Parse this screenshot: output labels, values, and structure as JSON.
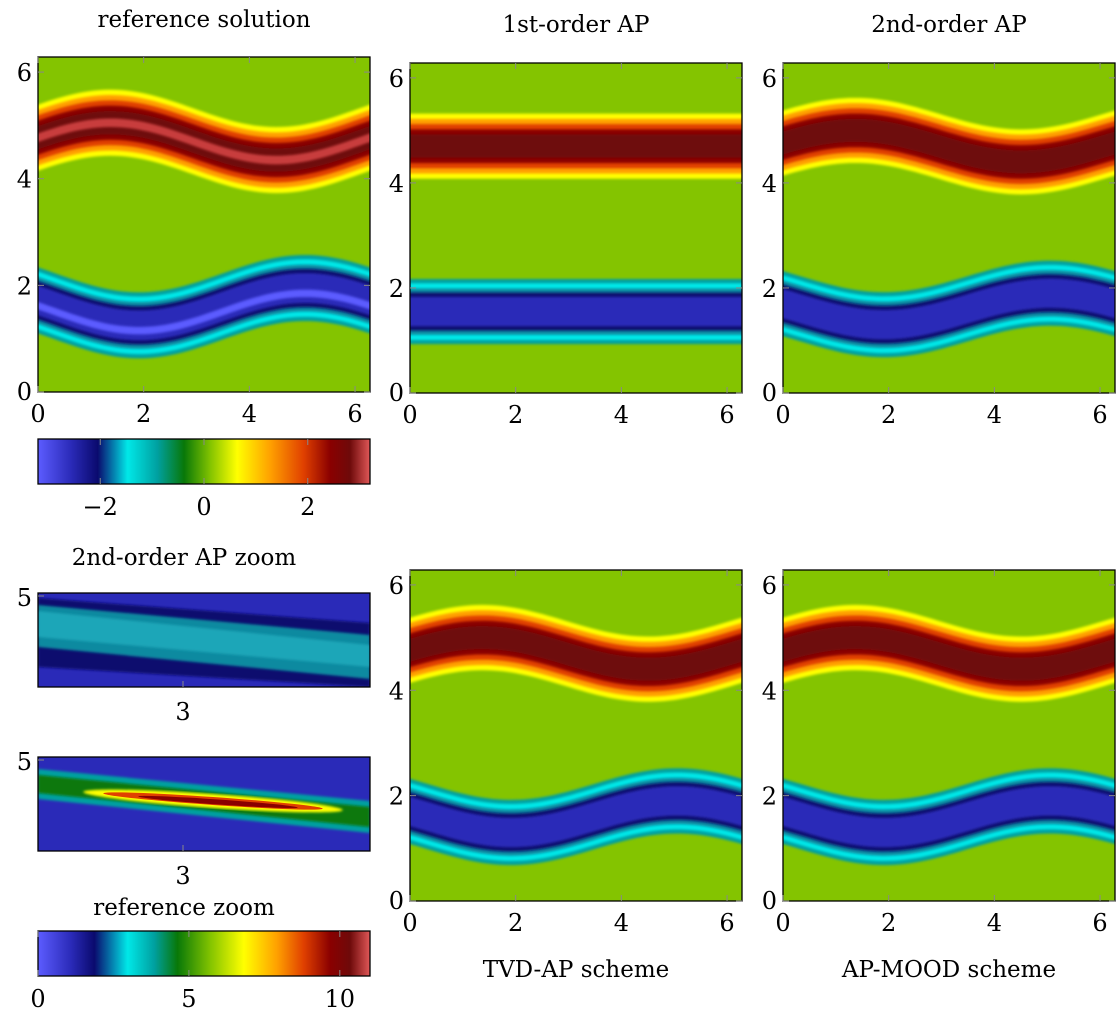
{
  "chart_data": [
    {
      "type": "heatmap",
      "title": "reference solution",
      "xlim": [
        0,
        6.283
      ],
      "ylim": [
        0,
        6.283
      ],
      "x_ticks": [
        "0",
        "2",
        "4",
        "6"
      ],
      "y_ticks": [
        "0",
        "2",
        "4",
        "6"
      ],
      "fields": {
        "positive_band": {
          "center_y": 4.7,
          "amplitude": 0.35,
          "peak": 3.0
        },
        "negative_band": {
          "center_y": 1.6,
          "amplitude": 0.35,
          "peak": -3.0
        }
      }
    },
    {
      "type": "heatmap",
      "title": "1st-order AP",
      "xlim": [
        0,
        6.283
      ],
      "ylim": [
        0,
        6.283
      ],
      "x_ticks": [
        "0",
        "2",
        "4",
        "6"
      ],
      "y_ticks": [
        "0",
        "2",
        "4",
        "6"
      ],
      "fields": {
        "positive_band": {
          "center_y": 4.7,
          "amplitude": 0.0,
          "peak": 2.8
        },
        "negative_band": {
          "center_y": 1.55,
          "amplitude": 0.0,
          "peak": -3.0
        }
      }
    },
    {
      "type": "heatmap",
      "title": "2nd-order AP",
      "xlim": [
        0,
        6.283
      ],
      "ylim": [
        0,
        6.283
      ],
      "x_ticks": [
        "0",
        "2",
        "4",
        "6"
      ],
      "y_ticks": [
        "0",
        "2",
        "4",
        "6"
      ],
      "fields": {
        "positive_band": {
          "center_y": 4.7,
          "amplitude": 0.3,
          "peak": 2.9
        },
        "negative_band": {
          "center_y": 1.6,
          "amplitude": 0.3,
          "peak": -3.0
        }
      }
    },
    {
      "type": "heatmap",
      "title": "TVD-AP scheme",
      "xlim": [
        0,
        6.283
      ],
      "ylim": [
        0,
        6.283
      ],
      "x_ticks": [
        "0",
        "2",
        "4",
        "6"
      ],
      "y_ticks": [
        "0",
        "2",
        "4",
        "6"
      ],
      "fields": {
        "positive_band": {
          "center_y": 4.7,
          "amplitude": 0.3,
          "peak": 2.9
        },
        "negative_band": {
          "center_y": 1.6,
          "amplitude": 0.3,
          "peak": -3.0
        }
      }
    },
    {
      "type": "heatmap",
      "title": "AP-MOOD scheme",
      "xlim": [
        0,
        6.283
      ],
      "ylim": [
        0,
        6.283
      ],
      "x_ticks": [
        "0",
        "2",
        "4",
        "6"
      ],
      "y_ticks": [
        "0",
        "2",
        "4",
        "6"
      ],
      "fields": {
        "positive_band": {
          "center_y": 4.7,
          "amplitude": 0.3,
          "peak": 2.9
        },
        "negative_band": {
          "center_y": 1.6,
          "amplitude": 0.3,
          "peak": -3.0
        }
      }
    },
    {
      "type": "heatmap",
      "title": "2nd-order AP zoom",
      "x_ticks": [
        "3"
      ],
      "y_ticks": [
        "5"
      ]
    },
    {
      "type": "heatmap",
      "title": "reference zoom",
      "x_ticks": [
        "3"
      ],
      "y_ticks": [
        "5"
      ]
    }
  ],
  "colorbars": [
    {
      "range": [
        -3.2,
        3.2
      ],
      "ticks": [
        "−2",
        "0",
        "2"
      ],
      "tick_values": [
        -2,
        0,
        2
      ]
    },
    {
      "range": [
        0,
        11
      ],
      "ticks": [
        "0",
        "5",
        "10"
      ],
      "tick_values": [
        0,
        5,
        10
      ]
    }
  ],
  "colormap": [
    "#5c5cff",
    "#2a2ab8",
    "#0a0a6e",
    "#0a8aa0",
    "#00e8e8",
    "#00a0a0",
    "#087808",
    "#3cb010",
    "#b0e000",
    "#ffff00",
    "#ffa000",
    "#e04000",
    "#8a0000",
    "#6e0a0a",
    "#c83c3c",
    "#e05858"
  ],
  "background_green": "#84c400"
}
